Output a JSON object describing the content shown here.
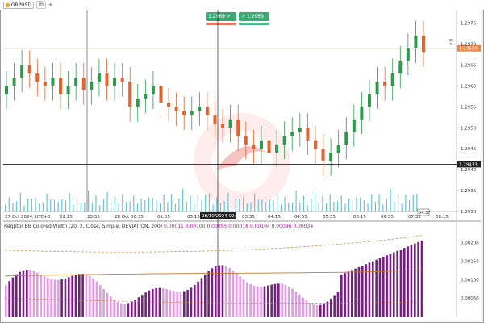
{
  "toolbar": {
    "symbol": "GBPUSD",
    "timeframe": "m",
    "trade": {
      "sell_price": "1.2969",
      "buy_price": "1.2969",
      "spread": "0.4"
    }
  },
  "price_axis": {
    "ticks": [
      "1.2975",
      "1.2970",
      "1.2965",
      "1.2960",
      "1.2955",
      "1.2950",
      "1.2945",
      "1.2940",
      "1.2935",
      "1.2930"
    ],
    "current_price": "1.29690",
    "crosshair_price": "1.29413"
  },
  "time_axis": {
    "ticks": [
      "27 Oct 2024, UTC+0",
      "22:15",
      "23:55",
      "28 Oct 00:35",
      "01:55",
      "03:15",
      "03:55",
      "04:15",
      "04:55",
      "05:35",
      "06:15",
      "06:55",
      "07:35",
      "08:15"
    ],
    "crosshair_time": "28/10/2024 02:05",
    "last_time": "04:37"
  },
  "indicator": {
    "title": "Regptor BB Colored Width (20, 2, Close, Simple, DEVIATION, 200)",
    "values": "0.00011 0.00100 0.00095 0.00018 0.00104 0.00096 0.00034",
    "ticks": [
      "0.00200",
      "0.00150",
      "0.00100",
      "0.00050"
    ]
  },
  "colors": {
    "bull": "#2e9a4e",
    "bear": "#e2632f",
    "volume": "#69c3d8",
    "ind_dark": "#7a1c86",
    "ind_light": "#e39be2",
    "band": "#c8762a"
  },
  "chart_data": {
    "type": "candlestick",
    "symbol": "GBPUSD",
    "ylim": [
      1.293,
      1.2978
    ],
    "closes_approx": [
      1.296,
      1.2962,
      1.2965,
      1.2963,
      1.2961,
      1.296,
      1.2962,
      1.2958,
      1.296,
      1.2962,
      1.2959,
      1.2961,
      1.2963,
      1.296,
      1.2962,
      1.2961,
      1.2955,
      1.2957,
      1.2958,
      1.296,
      1.2956,
      1.2955,
      1.2954,
      1.2953,
      1.2954,
      1.2955,
      1.2953,
      1.2951,
      1.295,
      1.2952,
      1.2948,
      1.2946,
      1.2945,
      1.2947,
      1.2944,
      1.2946,
      1.2948,
      1.2949,
      1.295,
      1.2947,
      1.2945,
      1.2942,
      1.2944,
      1.2946,
      1.2949,
      1.2952,
      1.2955,
      1.2958,
      1.2961,
      1.296,
      1.2963,
      1.2966,
      1.2969,
      1.2972,
      1.2968
    ]
  }
}
